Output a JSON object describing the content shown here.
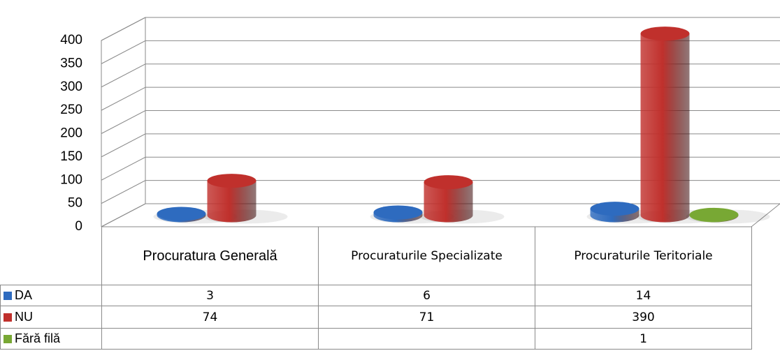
{
  "chart_data": {
    "type": "bar3d",
    "categories": [
      "Procuratura Generală",
      "Procuraturile Specializate",
      "Procuraturile Teritoriale"
    ],
    "series": [
      {
        "name": "DA",
        "color": "#2e6bbf",
        "values": [
          3,
          6,
          14
        ]
      },
      {
        "name": "NU",
        "color": "#c0302c",
        "values": [
          74,
          71,
          390
        ]
      },
      {
        "name": "Fără filă",
        "color": "#78a834",
        "values": [
          null,
          null,
          1
        ]
      }
    ],
    "ylim": [
      0,
      400
    ],
    "yticks": [
      0,
      50,
      100,
      150,
      200,
      250,
      300,
      350,
      400
    ],
    "grid": true,
    "data_table": true
  }
}
